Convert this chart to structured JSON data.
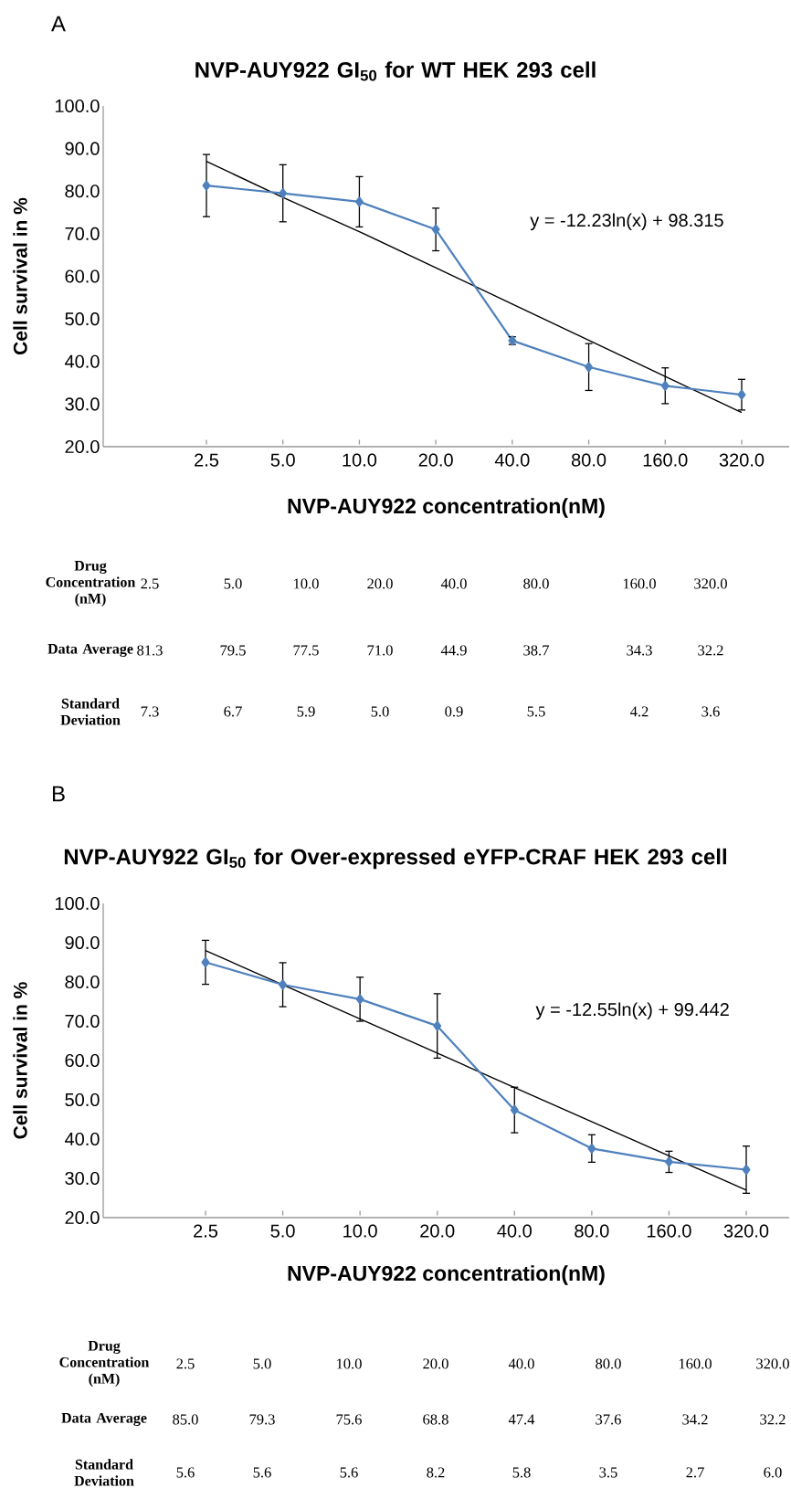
{
  "chart_data": [
    {
      "type": "line",
      "title": "NVP-AUY922 GI$_{50}$ for WT HEK 293 cell",
      "xlabel": "NVP-AUY922 concentration(nM)",
      "ylabel": "Cell survival in %",
      "categories": [
        "2.5",
        "5.0",
        "10.0",
        "20.0",
        "40.0",
        "80.0",
        "160.0",
        "320.0"
      ],
      "ylim": [
        20,
        100
      ],
      "yticks": [
        {
          "value": 20,
          "label": "20.0"
        },
        {
          "value": 30,
          "label": "30.0"
        },
        {
          "value": 40,
          "label": "40.0"
        },
        {
          "value": 50,
          "label": "50.0"
        },
        {
          "value": 60,
          "label": "60.0"
        },
        {
          "value": 70,
          "label": "70.0"
        },
        {
          "value": 80,
          "label": "80.0"
        },
        {
          "value": 90,
          "label": "90.0"
        },
        {
          "value": 100,
          "label": "100.0"
        }
      ],
      "marker": "diamond",
      "line_style": "solid",
      "series": [
        {
          "color": "#4f81bd",
          "values": [
            81.3,
            79.5,
            77.5,
            71.0,
            44.9,
            38.7,
            34.3,
            32.2
          ],
          "errors": [
            7.3,
            6.7,
            5.9,
            5.0,
            0.9,
            5.5,
            4.2,
            3.6
          ]
        },
        {
          "type": "line",
          "marker": "none",
          "color": "#000000",
          "values": [
            87,
            78.5,
            70.5,
            62,
            53.5,
            45,
            36.5,
            28
          ]
        }
      ],
      "annotations": [
        "A",
        "y = -12.23ln(x) + 98.315"
      ]
    },
    {
      "type": "other",
      "annotations": [
        "Drug Concentration (nM)",
        "2.5",
        "5.0",
        "10.0",
        "20.0",
        "40.0",
        "80.0",
        "160.0",
        "320.0",
        "Data Average",
        "81.3",
        "79.5",
        "77.5",
        "71.0",
        "44.9",
        "38.7",
        "34.3",
        "32.2",
        "Standard Deviation",
        "7.3",
        "6.7",
        "5.9",
        "5.0",
        "0.9",
        "5.5",
        "4.2",
        "3.6"
      ]
    },
    {
      "type": "line",
      "title": "NVP-AUY922 GI$_{50}$ for Over-expressed eYFP-CRAF HEK 293 cell",
      "xlabel": "NVP-AUY922 concentration(nM)",
      "ylabel": "Cell survival in %",
      "categories": [
        "2.5",
        "5.0",
        "10.0",
        "20.0",
        "40.0",
        "80.0",
        "160.0",
        "320.0"
      ],
      "ylim": [
        20,
        100
      ],
      "yticks": [
        {
          "value": 20,
          "label": "20.0"
        },
        {
          "value": 30,
          "label": "30.0"
        },
        {
          "value": 40,
          "label": "40.0"
        },
        {
          "value": 50,
          "label": "50.0"
        },
        {
          "value": 60,
          "label": "60.0"
        },
        {
          "value": 70,
          "label": "70.0"
        },
        {
          "value": 80,
          "label": "80.0"
        },
        {
          "value": 90,
          "label": "90.0"
        },
        {
          "value": 100,
          "label": "100.0"
        }
      ],
      "marker": "diamond",
      "line_style": "solid",
      "series": [
        {
          "color": "#4f81bd",
          "values": [
            85.0,
            79.3,
            75.6,
            68.8,
            47.4,
            37.6,
            34.2,
            32.2
          ],
          "errors": [
            5.6,
            5.6,
            5.6,
            8.2,
            5.8,
            3.5,
            2.7,
            6.0
          ]
        },
        {
          "type": "line",
          "marker": "none",
          "color": "#000000",
          "values": [
            88,
            79.3,
            70.6,
            61.9,
            53.1,
            44.4,
            35.7,
            27
          ]
        }
      ],
      "annotations": [
        "B",
        "y = -12.55ln(x) + 99.442"
      ]
    },
    {
      "type": "other",
      "annotations": [
        "Drug Concentration (nM)",
        "2.5",
        "5.0",
        "10.0",
        "20.0",
        "40.0",
        "80.0",
        "160.0",
        "320.0",
        "Data Average",
        "85.0",
        "79.3",
        "75.6",
        "68.8",
        "47.4",
        "37.6",
        "34.2",
        "32.2",
        "Standard Deviation",
        "5.6",
        "5.6",
        "5.6",
        "8.2",
        "5.8",
        "3.5",
        "2.7",
        "6.0"
      ]
    }
  ]
}
